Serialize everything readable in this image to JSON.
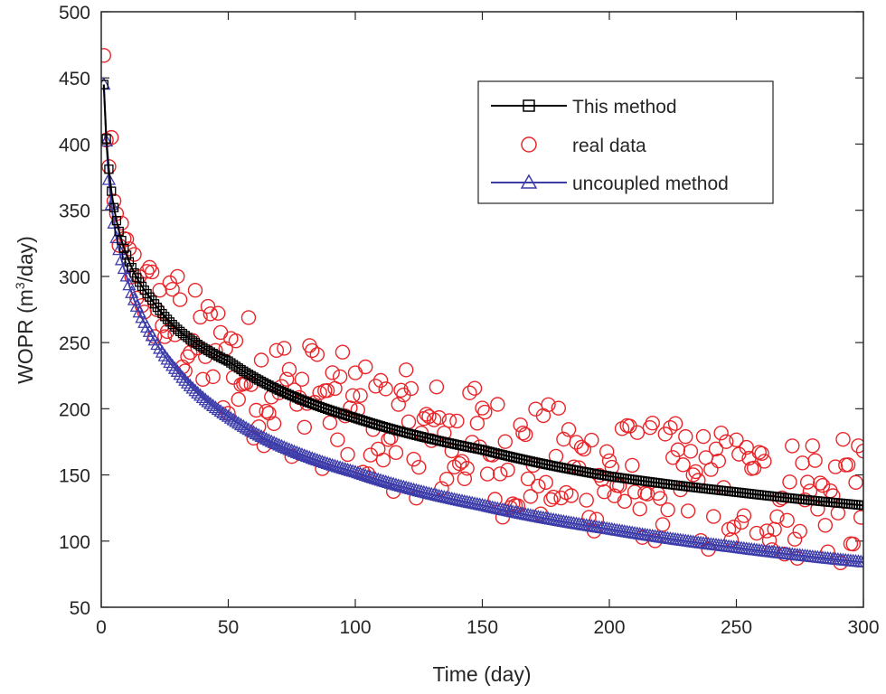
{
  "chart_data": {
    "type": "line",
    "title": "",
    "xlabel": "Time (day)",
    "ylabel_prefix": "WOPR (m",
    "ylabel_sup": "3",
    "ylabel_suffix": "/day)",
    "xlim": [
      0,
      300
    ],
    "ylim": [
      50,
      500
    ],
    "xticks": [
      0,
      50,
      100,
      150,
      200,
      250,
      300
    ],
    "yticks": [
      50,
      100,
      150,
      200,
      250,
      300,
      350,
      400,
      450,
      500
    ],
    "legend_position": "top-right",
    "series": [
      {
        "name": "This method",
        "marker": "square",
        "color": "#000000",
        "model": "inverse-power decline",
        "x_range": [
          1,
          300
        ],
        "points": 300,
        "anchors": [
          [
            1,
            445
          ],
          [
            2,
            404
          ],
          [
            3,
            381
          ],
          [
            5,
            352
          ],
          [
            10,
            316
          ],
          [
            20,
            282
          ],
          [
            30,
            260
          ],
          [
            50,
            236
          ],
          [
            100,
            193
          ],
          [
            150,
            169
          ],
          [
            200,
            149
          ],
          [
            250,
            137
          ],
          [
            300,
            127
          ]
        ]
      },
      {
        "name": "real data",
        "marker": "circle",
        "color": "#e8262a",
        "points": 300,
        "x_range": [
          1,
          300
        ],
        "highlights": [
          [
            1,
            467
          ],
          [
            3,
            383
          ],
          [
            4,
            405
          ],
          [
            30,
            300
          ],
          [
            83,
            244
          ],
          [
            145,
            212
          ],
          [
            205,
            185
          ],
          [
            280,
            172
          ],
          [
            298,
            172
          ],
          [
            300,
            168
          ],
          [
            295,
            98
          ]
        ]
      },
      {
        "name": "uncoupled method",
        "marker": "triangle",
        "color": "#3c3caa",
        "model": "inverse-power decline",
        "x_range": [
          1,
          300
        ],
        "points": 300,
        "anchors": [
          [
            1,
            445
          ],
          [
            2,
            402
          ],
          [
            3,
            373
          ],
          [
            5,
            340
          ],
          [
            10,
            300
          ],
          [
            20,
            255
          ],
          [
            30,
            228
          ],
          [
            50,
            194
          ],
          [
            100,
            152
          ],
          [
            150,
            127
          ],
          [
            200,
            109
          ],
          [
            250,
            95
          ],
          [
            300,
            84
          ]
        ]
      }
    ]
  }
}
